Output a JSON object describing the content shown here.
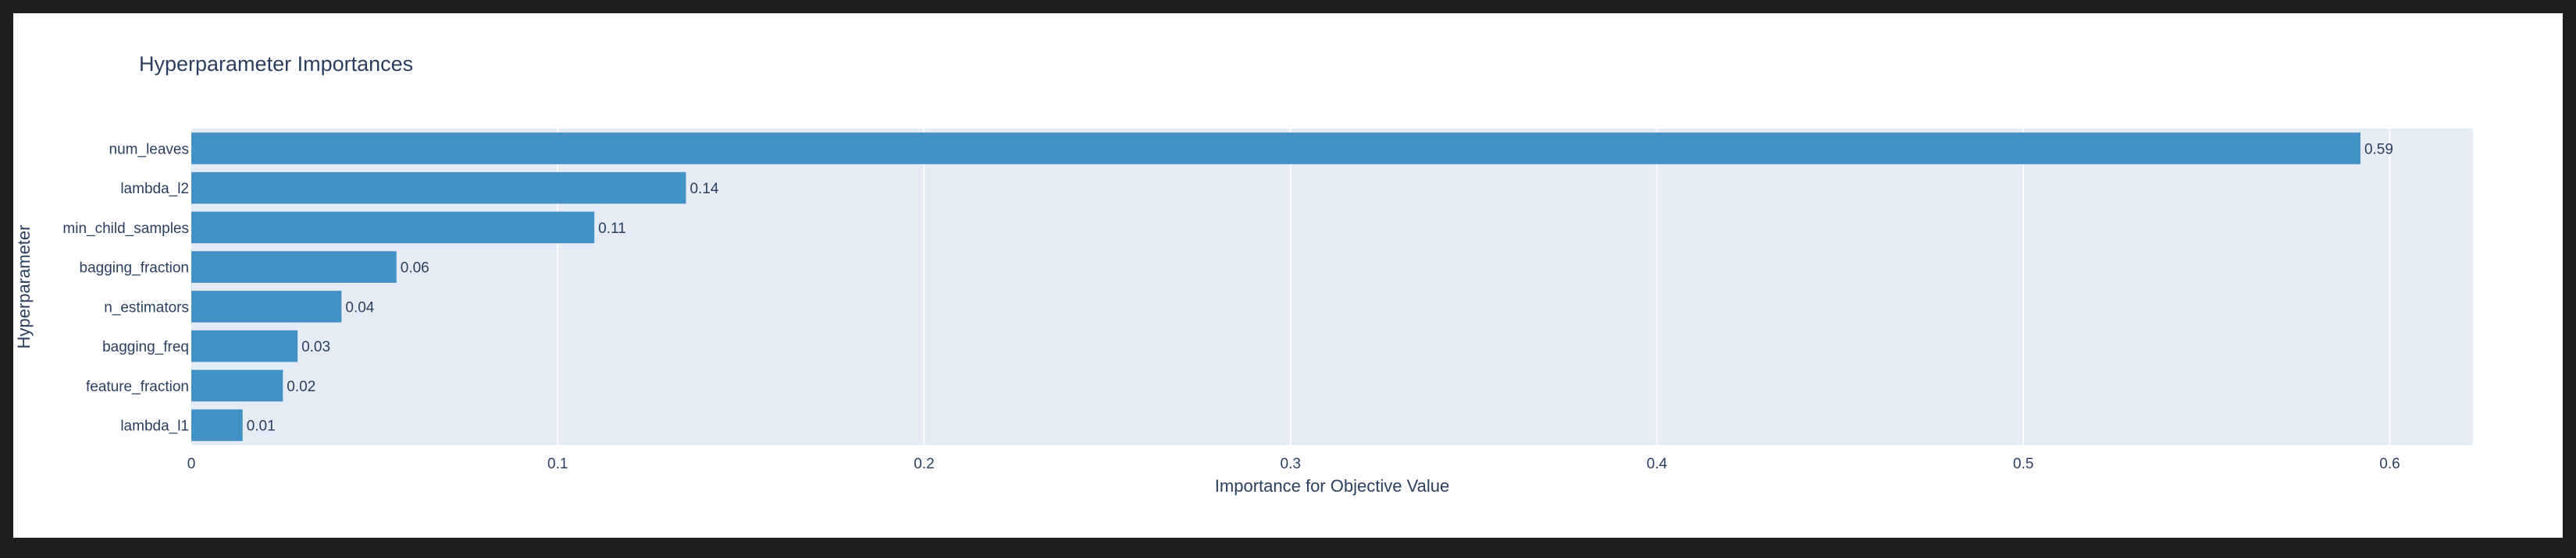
{
  "chart_data": {
    "type": "bar",
    "orientation": "horizontal",
    "title": "Hyperparameter Importances",
    "xlabel": "Importance for Objective Value",
    "ylabel": "Hyperparameter",
    "categories": [
      "num_leaves",
      "lambda_l2",
      "min_child_samples",
      "bagging_fraction",
      "n_estimators",
      "bagging_freq",
      "feature_fraction",
      "lambda_l1"
    ],
    "values": [
      0.592,
      0.135,
      0.11,
      0.056,
      0.041,
      0.029,
      0.025,
      0.014
    ],
    "data_labels": [
      "0.59",
      "0.14",
      "0.11",
      "0.06",
      "0.04",
      "0.03",
      "0.02",
      "0.01"
    ],
    "xticks": [
      0,
      0.1,
      0.2,
      0.3,
      0.4,
      0.5,
      0.6
    ],
    "xtick_labels": [
      "0",
      "0.1",
      "0.2",
      "0.3",
      "0.4",
      "0.5",
      "0.6"
    ],
    "xlim": [
      0,
      0.6227
    ],
    "grid": true,
    "colors": {
      "bar": "#4292c6",
      "plot_bg": "#e5ecf6",
      "grid": "#ffffff",
      "text": "#2a3f5f"
    }
  }
}
